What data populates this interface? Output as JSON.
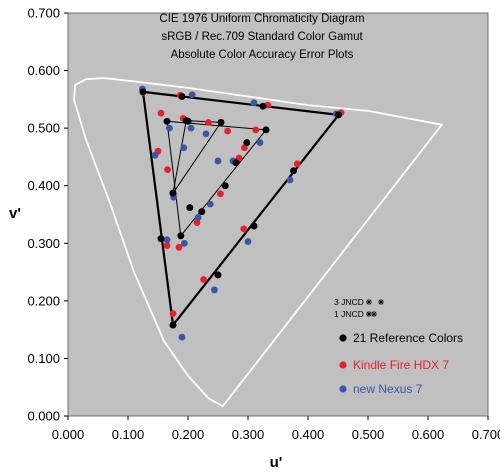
{
  "chart_data": {
    "type": "scatter",
    "title_lines": [
      "CIE 1976 Uniform Chromaticity Diagram",
      "sRGB / Rec.709 Standard Color Gamut",
      "Absolute Color Accuracy Error Plots"
    ],
    "xlabel": "u'",
    "ylabel": "v'",
    "xlim": [
      0,
      0.7
    ],
    "ylim": [
      0,
      0.7
    ],
    "x_ticks": [
      "0.000",
      "0.100",
      "0.200",
      "0.300",
      "0.400",
      "0.500",
      "0.600",
      "0.700"
    ],
    "y_ticks": [
      "0.000",
      "0.100",
      "0.200",
      "0.300",
      "0.400",
      "0.500",
      "0.600",
      "0.700"
    ],
    "grid": false,
    "plot_background": "#c0c0c0",
    "locus": [
      [
        0.258,
        0.017
      ],
      [
        0.235,
        0.03
      ],
      [
        0.2,
        0.07
      ],
      [
        0.16,
        0.13
      ],
      [
        0.11,
        0.25
      ],
      [
        0.07,
        0.37
      ],
      [
        0.03,
        0.48
      ],
      [
        0.01,
        0.55
      ],
      [
        0.012,
        0.575
      ],
      [
        0.03,
        0.585
      ],
      [
        0.06,
        0.587
      ],
      [
        0.12,
        0.58
      ],
      [
        0.2,
        0.57
      ],
      [
        0.3,
        0.555
      ],
      [
        0.4,
        0.54
      ],
      [
        0.5,
        0.53
      ],
      [
        0.623,
        0.506
      ]
    ],
    "gamut_triangle": [
      [
        0.451,
        0.523
      ],
      [
        0.125,
        0.563
      ],
      [
        0.175,
        0.158
      ]
    ],
    "inner_triangles": [
      [
        [
          0.33,
          0.497
        ],
        [
          0.165,
          0.512
        ],
        [
          0.188,
          0.313
        ]
      ],
      [
        [
          0.255,
          0.51
        ],
        [
          0.175,
          0.387
        ],
        [
          0.197,
          0.513
        ]
      ]
    ],
    "jncd_labels": [
      "3 JNCD",
      "1 JNCD"
    ],
    "series": [
      {
        "name": "21 Reference Colors",
        "color": "#000000",
        "points": [
          [
            0.125,
            0.563
          ],
          [
            0.19,
            0.555
          ],
          [
            0.325,
            0.538
          ],
          [
            0.451,
            0.523
          ],
          [
            0.165,
            0.512
          ],
          [
            0.2,
            0.512
          ],
          [
            0.33,
            0.497
          ],
          [
            0.255,
            0.51
          ],
          [
            0.298,
            0.475
          ],
          [
            0.28,
            0.44
          ],
          [
            0.262,
            0.4
          ],
          [
            0.223,
            0.355
          ],
          [
            0.155,
            0.308
          ],
          [
            0.175,
            0.387
          ],
          [
            0.188,
            0.313
          ],
          [
            0.175,
            0.158
          ],
          [
            0.197,
            0.513
          ],
          [
            0.376,
            0.426
          ],
          [
            0.31,
            0.33
          ],
          [
            0.25,
            0.245
          ],
          [
            0.203,
            0.362
          ]
        ]
      },
      {
        "name": "Kindle Fire HDX 7",
        "color": "#e8202a",
        "points": [
          [
            0.125,
            0.562
          ],
          [
            0.187,
            0.557
          ],
          [
            0.333,
            0.54
          ],
          [
            0.455,
            0.527
          ],
          [
            0.155,
            0.526
          ],
          [
            0.192,
            0.517
          ],
          [
            0.313,
            0.497
          ],
          [
            0.266,
            0.495
          ],
          [
            0.294,
            0.466
          ],
          [
            0.285,
            0.448
          ],
          [
            0.254,
            0.386
          ],
          [
            0.215,
            0.336
          ],
          [
            0.165,
            0.296
          ],
          [
            0.15,
            0.46
          ],
          [
            0.185,
            0.293
          ],
          [
            0.175,
            0.178
          ],
          [
            0.234,
            0.51
          ],
          [
            0.382,
            0.438
          ],
          [
            0.293,
            0.325
          ],
          [
            0.226,
            0.237
          ],
          [
            0.166,
            0.428
          ]
        ]
      },
      {
        "name": "new Nexus 7",
        "color": "#3a56a8",
        "points": [
          [
            0.124,
            0.568
          ],
          [
            0.207,
            0.558
          ],
          [
            0.31,
            0.544
          ],
          [
            0.447,
            0.525
          ],
          [
            0.169,
            0.5
          ],
          [
            0.205,
            0.5
          ],
          [
            0.32,
            0.475
          ],
          [
            0.23,
            0.49
          ],
          [
            0.25,
            0.443
          ],
          [
            0.275,
            0.443
          ],
          [
            0.237,
            0.368
          ],
          [
            0.217,
            0.345
          ],
          [
            0.165,
            0.306
          ],
          [
            0.145,
            0.453
          ],
          [
            0.194,
            0.3
          ],
          [
            0.19,
            0.137
          ],
          [
            0.193,
            0.466
          ],
          [
            0.37,
            0.41
          ],
          [
            0.3,
            0.303
          ],
          [
            0.244,
            0.219
          ],
          [
            0.176,
            0.38
          ]
        ]
      }
    ],
    "legend_position": "bottom-right"
  }
}
